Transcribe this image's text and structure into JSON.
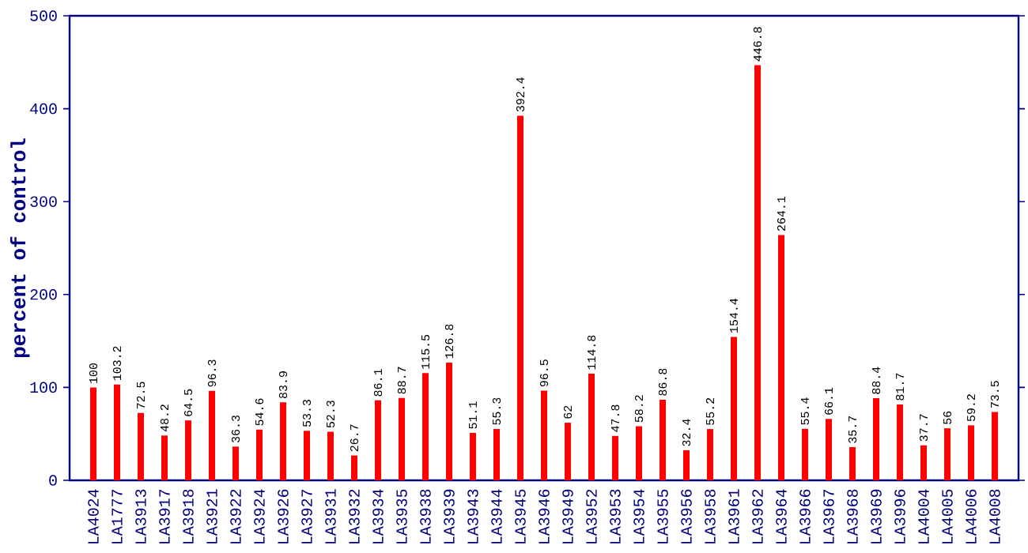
{
  "chart_data": {
    "type": "bar",
    "ylabel": "percent of control",
    "categories": [
      "LA4024",
      "LA1777",
      "LA3913",
      "LA3917",
      "LA3918",
      "LA3921",
      "LA3922",
      "LA3924",
      "LA3926",
      "LA3927",
      "LA3931",
      "LA3932",
      "LA3934",
      "LA3935",
      "LA3938",
      "LA3939",
      "LA3943",
      "LA3944",
      "LA3945",
      "LA3946",
      "LA3949",
      "LA3952",
      "LA3953",
      "LA3954",
      "LA3955",
      "LA3956",
      "LA3958",
      "LA3961",
      "LA3962",
      "LA3964",
      "LA3966",
      "LA3967",
      "LA3968",
      "LA3969",
      "LA3996",
      "LA4004",
      "LA4005",
      "LA4006",
      "LA4008"
    ],
    "values": [
      100,
      103.2,
      72.5,
      48.2,
      64.5,
      96.3,
      36.3,
      54.6,
      83.9,
      53.3,
      52.3,
      26.7,
      86.1,
      88.7,
      115.5,
      126.8,
      51.1,
      55.3,
      392.4,
      96.5,
      62,
      114.8,
      47.8,
      58.2,
      86.8,
      32.4,
      55.2,
      154.4,
      446.8,
      264.1,
      55.4,
      66.1,
      35.7,
      88.4,
      81.7,
      37.7,
      56,
      59.2,
      73.5
    ],
    "color": "#ff0000",
    "ylim": [
      0,
      500
    ],
    "yticks": [
      0,
      100,
      200,
      300,
      400,
      500
    ],
    "data_labels": true,
    "grid": false
  }
}
